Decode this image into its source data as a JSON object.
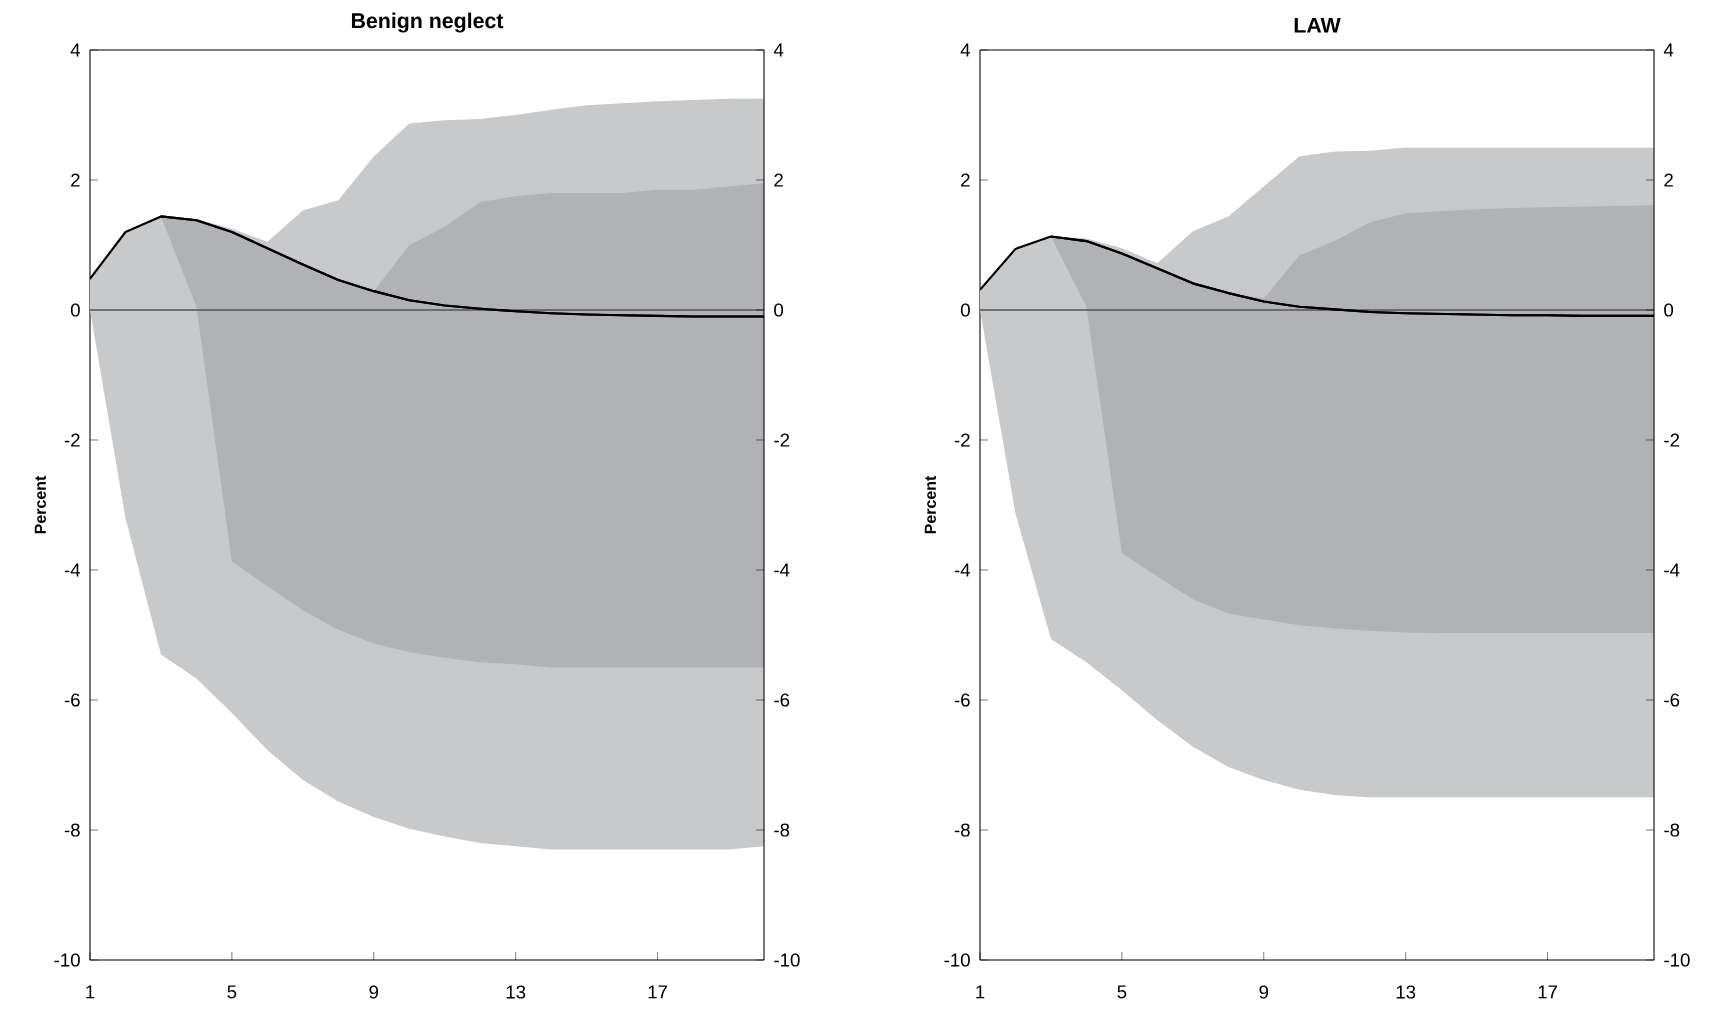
{
  "chart_data": [
    {
      "type": "line",
      "title": "Benign neglect",
      "ylabel": "Percent",
      "x": [
        1,
        2,
        3,
        4,
        5,
        6,
        7,
        8,
        9,
        10,
        11,
        12,
        13,
        14,
        15,
        16,
        17,
        18,
        19,
        20
      ],
      "xlim": [
        1,
        20
      ],
      "xticks": [
        1,
        5,
        9,
        13,
        17
      ],
      "ylim": [
        -10,
        4
      ],
      "yticks": [
        -10,
        -8,
        -6,
        -4,
        -2,
        0,
        2,
        4
      ],
      "y2lim": [
        -10,
        4
      ],
      "y2ticks": [
        -10,
        -8,
        -6,
        -4,
        -2,
        0,
        2,
        4
      ],
      "grid": false,
      "colors": [
        "#c8c9cb",
        "#b1b2b5"
      ],
      "series": [
        {
          "color": "#000000",
          "values": [
            0.48,
            1.2,
            1.44,
            1.38,
            1.2,
            0.95,
            0.7,
            0.46,
            0.29,
            0.15,
            0.07,
            0.02,
            -0.02,
            -0.05,
            -0.07,
            -0.08,
            -0.09,
            -0.1,
            -0.1,
            -0.1
          ],
          "upper": [
            0.45,
            1.2,
            1.44,
            1.4,
            1.25,
            1.05,
            1.53,
            1.69,
            2.36,
            2.87,
            2.92,
            2.94,
            3.0,
            3.08,
            3.15,
            3.18,
            3.21,
            3.23,
            3.25,
            3.25
          ],
          "lower": [
            0,
            -3.2,
            -5.3,
            -5.67,
            -6.2,
            -6.77,
            -7.23,
            -7.56,
            -7.8,
            -7.98,
            -8.1,
            -8.2,
            -8.25,
            -8.3,
            -8.3,
            -8.3,
            -8.3,
            -8.3,
            -8.3,
            -8.25
          ]
        },
        {
          "color": "#000000",
          "values": [
            null,
            null,
            1.44,
            1.38,
            1.2,
            0.95,
            0.7,
            0.46,
            0.29,
            0.15,
            0.07,
            0.02,
            -0.02,
            -0.05,
            -0.07,
            -0.08,
            -0.09,
            -0.1,
            -0.1,
            -0.1
          ],
          "upper": [
            null,
            null,
            1.44,
            1.38,
            1.2,
            0.95,
            0.7,
            0.46,
            0.29,
            1.0,
            1.28,
            1.66,
            1.75,
            1.8,
            1.8,
            1.8,
            1.85,
            1.85,
            1.9,
            1.95
          ],
          "lower": [
            null,
            null,
            1.44,
            0.05,
            -3.87,
            -4.25,
            -4.62,
            -4.92,
            -5.13,
            -5.26,
            -5.35,
            -5.42,
            -5.45,
            -5.5,
            -5.5,
            -5.5,
            -5.5,
            -5.5,
            -5.5,
            -5.5
          ]
        }
      ],
      "ref_lines": [
        {
          "axis": "y",
          "value": 0,
          "color": "#555555"
        }
      ]
    },
    {
      "type": "line",
      "title": "LAW",
      "ylabel": "Percent",
      "x": [
        1,
        2,
        3,
        4,
        5,
        6,
        7,
        8,
        9,
        10,
        11,
        12,
        13,
        14,
        15,
        16,
        17,
        18,
        19,
        20
      ],
      "xlim": [
        1,
        20
      ],
      "xticks": [
        1,
        5,
        9,
        13,
        17
      ],
      "ylim": [
        -10,
        4
      ],
      "yticks": [
        -10,
        -8,
        -6,
        -4,
        -2,
        0,
        2,
        4
      ],
      "y2lim": [
        -10,
        4
      ],
      "y2ticks": [
        -10,
        -8,
        -6,
        -4,
        -2,
        0,
        2,
        4
      ],
      "grid": false,
      "colors": [
        "#c8c9cb",
        "#b1b2b5"
      ],
      "series": [
        {
          "color": "#000000",
          "values": [
            0.31,
            0.94,
            1.13,
            1.06,
            0.87,
            0.64,
            0.41,
            0.26,
            0.13,
            0.05,
            0.01,
            -0.03,
            -0.05,
            -0.06,
            -0.07,
            -0.08,
            -0.08,
            -0.09,
            -0.09,
            -0.09
          ],
          "upper": [
            0.31,
            0.94,
            1.13,
            1.1,
            0.95,
            0.72,
            1.21,
            1.44,
            1.9,
            2.36,
            2.44,
            2.45,
            2.5,
            2.5,
            2.5,
            2.5,
            2.5,
            2.5,
            2.5,
            2.5
          ],
          "lower": [
            0,
            -3.13,
            -5.06,
            -5.42,
            -5.85,
            -6.31,
            -6.72,
            -7.03,
            -7.23,
            -7.38,
            -7.46,
            -7.5,
            -7.5,
            -7.5,
            -7.5,
            -7.5,
            -7.5,
            -7.5,
            -7.5,
            -7.5
          ]
        },
        {
          "color": "#000000",
          "values": [
            null,
            null,
            1.13,
            1.06,
            0.87,
            0.64,
            0.41,
            0.26,
            0.13,
            0.05,
            0.01,
            -0.03,
            -0.05,
            -0.06,
            -0.07,
            -0.08,
            -0.08,
            -0.09,
            -0.09,
            -0.09
          ],
          "upper": [
            null,
            null,
            1.13,
            1.06,
            0.87,
            0.64,
            0.41,
            0.26,
            0.18,
            0.84,
            1.06,
            1.35,
            1.49,
            1.52,
            1.55,
            1.57,
            1.58,
            1.59,
            1.6,
            1.61
          ],
          "lower": [
            null,
            null,
            1.13,
            0.05,
            -3.74,
            -4.1,
            -4.45,
            -4.67,
            -4.76,
            -4.85,
            -4.9,
            -4.94,
            -4.96,
            -4.97,
            -4.97,
            -4.97,
            -4.97,
            -4.97,
            -4.97,
            -4.97
          ]
        }
      ],
      "ref_lines": [
        {
          "axis": "y",
          "value": 0,
          "color": "#555555"
        }
      ]
    }
  ]
}
